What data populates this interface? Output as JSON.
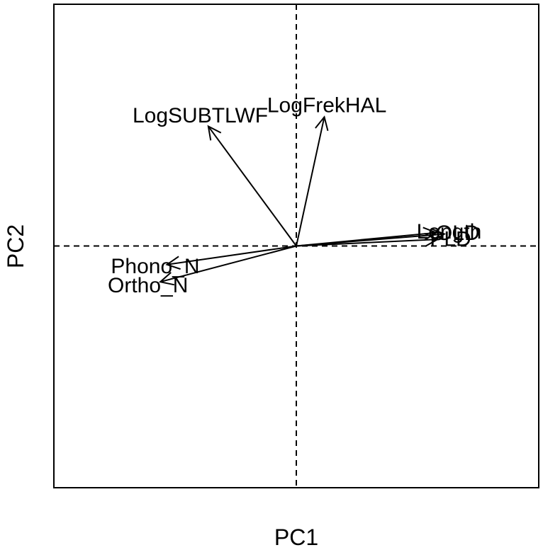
{
  "chart_data": {
    "type": "biplot",
    "title": "",
    "xlabel": "PC1",
    "ylabel": "PC2",
    "xlim": [
      -1,
      1
    ],
    "ylim": [
      -1,
      1
    ],
    "grid": false,
    "reference_lines": {
      "x": 0,
      "y": 0,
      "style": "dashed"
    },
    "vectors": [
      {
        "label": "LogFrekHAL",
        "x": 0.21,
        "y": 0.97
      },
      {
        "label": "LogSUBTLWF",
        "x": -0.66,
        "y": 0.9
      },
      {
        "label": "Length",
        "x": 1.05,
        "y": 0.1
      },
      {
        "label": "OLD",
        "x": 1.11,
        "y": 0.09
      },
      {
        "label": "PLD",
        "x": 1.06,
        "y": 0.05
      },
      {
        "label": "Phono_N",
        "x": -0.97,
        "y": -0.14
      },
      {
        "label": "Ortho_N",
        "x": -1.02,
        "y": -0.27
      }
    ]
  }
}
